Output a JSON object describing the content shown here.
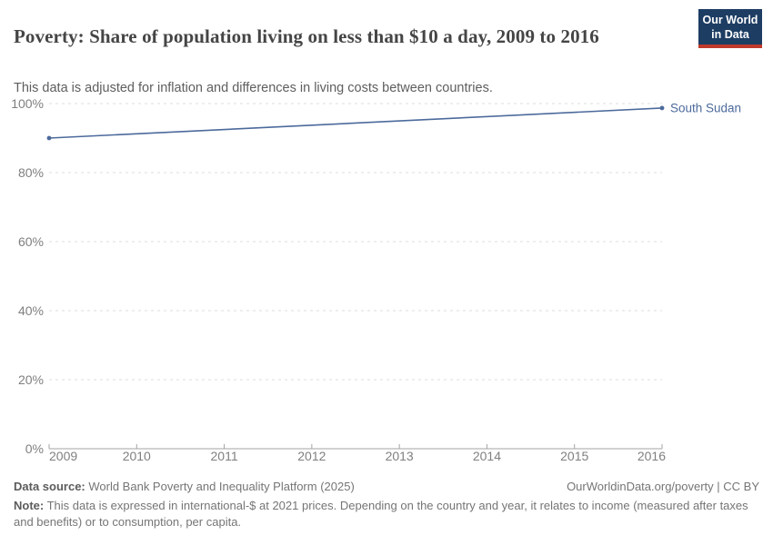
{
  "header": {
    "title": "Poverty: Share of population living on less than $10 a day, 2009 to 2016",
    "subtitle": "This data is adjusted for inflation and differences in living costs between countries."
  },
  "logo": {
    "line1": "Our World",
    "line2": "in Data",
    "bg_color": "#1d3d63",
    "accent_color": "#c0392b"
  },
  "chart_data": {
    "type": "line",
    "title": "Poverty: Share of population living on less than $10 a day, 2009 to 2016",
    "series": [
      {
        "name": "South Sudan",
        "color": "#4c6a9c",
        "x": [
          2009,
          2016
        ],
        "values": [
          90.0,
          98.7
        ]
      }
    ],
    "xlabel": "",
    "ylabel": "",
    "xlim": [
      2009,
      2016
    ],
    "ylim": [
      0,
      100
    ],
    "xticks": [
      2009,
      2010,
      2011,
      2012,
      2013,
      2014,
      2015,
      2016
    ],
    "yticks": [
      0,
      20,
      40,
      60,
      80,
      100
    ],
    "ytick_suffix": "%",
    "grid": "horizontal-dashed",
    "legend_position": "end-of-line-label",
    "grid_color": "#dcdcdc",
    "axis_color": "#a3a3a3",
    "tick_label_color": "#7f7f7f"
  },
  "footer": {
    "datasource_label": "Data source:",
    "datasource_text": " World Bank Poverty and Inequality Platform (2025)",
    "rights_text": "OurWorldinData.org/poverty | CC BY",
    "note_label": "Note:",
    "note_text": " This data is expressed in international-$ at 2021 prices. Depending on the country and year, it relates to income (measured after taxes and benefits) or to consumption, per capita."
  }
}
